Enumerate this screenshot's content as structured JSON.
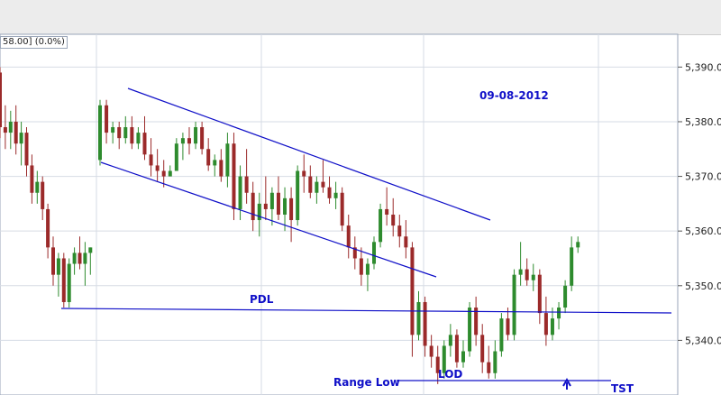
{
  "header": {
    "price_readout": "58.00] (0.0%)"
  },
  "annotations": {
    "date_label": "09-08-2012",
    "pdl_label": "PDL",
    "lod_label": "LOD",
    "range_low_label": "Range Low",
    "tst_label": "TST"
  },
  "colors": {
    "up": "#2e8b2e",
    "down": "#9b2a2a",
    "annotation": "#1010c8",
    "grid": "#d6dbe4"
  },
  "chart_data": {
    "type": "candlestick",
    "title": "",
    "y_ticks": [
      "5,340.00",
      "5,350.00",
      "5,360.00",
      "5,370.00",
      "5,380.00",
      "5,390.00"
    ],
    "ylim": [
      5330,
      5396
    ],
    "grid": true,
    "candles": [
      [
        5389.0,
        5390.0,
        5377.0,
        5379.0
      ],
      [
        5379.0,
        5383.0,
        5375.0,
        5378.0
      ],
      [
        5378.0,
        5382.0,
        5375.0,
        5380.0
      ],
      [
        5380.0,
        5383.0,
        5374.0,
        5376.0
      ],
      [
        5376.0,
        5380.0,
        5372.0,
        5378.0
      ],
      [
        5378.0,
        5379.0,
        5370.0,
        5372.0
      ],
      [
        5372.0,
        5374.0,
        5365.0,
        5367.0
      ],
      [
        5367.0,
        5371.0,
        5365.0,
        5369.0
      ],
      [
        5369.0,
        5370.0,
        5362.0,
        5364.0
      ],
      [
        5364.0,
        5365.0,
        5355.0,
        5357.0
      ],
      [
        5357.0,
        5359.0,
        5350.0,
        5352.0
      ],
      [
        5352.0,
        5356.0,
        5348.0,
        5355.0
      ],
      [
        5355.0,
        5356.0,
        5346.0,
        5347.0
      ],
      [
        5347.0,
        5355.0,
        5346.0,
        5354.0
      ],
      [
        5354.0,
        5357.0,
        5352.0,
        5356.0
      ],
      [
        5356.0,
        5359.0,
        5353.0,
        5354.0
      ],
      [
        5354.0,
        5358.0,
        5350.0,
        5356.0
      ],
      [
        5356.0,
        5357.0,
        5352.0,
        5357.0
      ],
      [
        5373.0,
        5384.0,
        5372.0,
        5383.0
      ],
      [
        5383.0,
        5384.0,
        5376.0,
        5378.0
      ],
      [
        5378.0,
        5380.0,
        5376.0,
        5379.0
      ],
      [
        5379.0,
        5380.0,
        5375.0,
        5377.0
      ],
      [
        5377.0,
        5381.0,
        5376.0,
        5379.0
      ],
      [
        5379.0,
        5381.0,
        5375.0,
        5376.0
      ],
      [
        5376.0,
        5379.0,
        5375.0,
        5378.0
      ],
      [
        5378.0,
        5381.0,
        5373.0,
        5374.0
      ],
      [
        5374.0,
        5377.0,
        5370.0,
        5372.0
      ],
      [
        5372.0,
        5375.0,
        5369.0,
        5371.0
      ],
      [
        5371.0,
        5373.0,
        5368.0,
        5370.0
      ],
      [
        5370.0,
        5372.0,
        5370.0,
        5371.0
      ],
      [
        5371.0,
        5377.0,
        5371.0,
        5376.0
      ],
      [
        5376.0,
        5378.0,
        5373.0,
        5377.0
      ],
      [
        5377.0,
        5379.0,
        5374.0,
        5376.0
      ],
      [
        5376.0,
        5380.0,
        5375.0,
        5379.0
      ],
      [
        5379.0,
        5380.0,
        5374.0,
        5375.0
      ],
      [
        5375.0,
        5377.0,
        5371.0,
        5372.0
      ],
      [
        5372.0,
        5374.0,
        5370.0,
        5373.0
      ],
      [
        5373.0,
        5375.0,
        5369.0,
        5370.0
      ],
      [
        5370.0,
        5378.0,
        5368.0,
        5376.0
      ],
      [
        5376.0,
        5378.0,
        5362.0,
        5364.0
      ],
      [
        5364.0,
        5372.0,
        5362.0,
        5370.0
      ],
      [
        5370.0,
        5375.0,
        5365.0,
        5367.0
      ],
      [
        5367.0,
        5369.0,
        5360.0,
        5362.0
      ],
      [
        5362.0,
        5367.0,
        5359.0,
        5365.0
      ],
      [
        5365.0,
        5370.0,
        5362.0,
        5364.0
      ],
      [
        5364.0,
        5368.0,
        5361.0,
        5367.0
      ],
      [
        5367.0,
        5370.0,
        5362.0,
        5363.0
      ],
      [
        5363.0,
        5368.0,
        5360.0,
        5366.0
      ],
      [
        5366.0,
        5368.0,
        5358.0,
        5362.0
      ],
      [
        5362.0,
        5372.0,
        5361.0,
        5371.0
      ],
      [
        5371.0,
        5374.0,
        5367.0,
        5370.0
      ],
      [
        5370.0,
        5372.0,
        5366.0,
        5367.0
      ],
      [
        5367.0,
        5370.0,
        5365.0,
        5369.0
      ],
      [
        5369.0,
        5373.0,
        5367.0,
        5368.0
      ],
      [
        5368.0,
        5370.0,
        5365.0,
        5366.0
      ],
      [
        5366.0,
        5369.0,
        5364.0,
        5367.0
      ],
      [
        5367.0,
        5368.0,
        5360.0,
        5361.0
      ],
      [
        5361.0,
        5363.0,
        5355.0,
        5357.0
      ],
      [
        5357.0,
        5359.0,
        5353.0,
        5355.0
      ],
      [
        5355.0,
        5357.0,
        5350.0,
        5352.0
      ],
      [
        5352.0,
        5355.0,
        5349.0,
        5354.0
      ],
      [
        5354.0,
        5359.0,
        5353.0,
        5358.0
      ],
      [
        5358.0,
        5365.0,
        5357.0,
        5364.0
      ],
      [
        5364.0,
        5368.0,
        5361.0,
        5363.0
      ],
      [
        5363.0,
        5366.0,
        5359.0,
        5361.0
      ],
      [
        5361.0,
        5363.0,
        5357.0,
        5359.0
      ],
      [
        5359.0,
        5362.0,
        5355.0,
        5357.0
      ],
      [
        5357.0,
        5358.0,
        5337.0,
        5341.0
      ],
      [
        5341.0,
        5349.0,
        5340.0,
        5347.0
      ],
      [
        5347.0,
        5348.0,
        5337.0,
        5339.0
      ],
      [
        5339.0,
        5341.0,
        5335.0,
        5337.0
      ],
      [
        5337.0,
        5339.0,
        5332.0,
        5334.0
      ],
      [
        5334.0,
        5340.0,
        5333.0,
        5339.0
      ],
      [
        5339.0,
        5343.0,
        5337.0,
        5341.0
      ],
      [
        5341.0,
        5342.0,
        5335.0,
        5336.0
      ],
      [
        5336.0,
        5340.0,
        5335.0,
        5338.0
      ],
      [
        5338.0,
        5347.0,
        5337.0,
        5346.0
      ],
      [
        5346.0,
        5348.0,
        5339.0,
        5341.0
      ],
      [
        5341.0,
        5343.0,
        5334.0,
        5336.0
      ],
      [
        5336.0,
        5339.0,
        5333.0,
        5334.0
      ],
      [
        5334.0,
        5340.0,
        5333.0,
        5338.0
      ],
      [
        5338.0,
        5345.0,
        5337.0,
        5344.0
      ],
      [
        5344.0,
        5346.0,
        5340.0,
        5341.0
      ],
      [
        5341.0,
        5353.0,
        5340.0,
        5352.0
      ],
      [
        5352.0,
        5358.0,
        5350.0,
        5353.0
      ],
      [
        5353.0,
        5355.0,
        5350.0,
        5351.0
      ],
      [
        5351.0,
        5354.0,
        5349.0,
        5352.0
      ],
      [
        5352.0,
        5353.0,
        5343.0,
        5345.0
      ],
      [
        5345.0,
        5348.0,
        5339.0,
        5341.0
      ],
      [
        5341.0,
        5346.0,
        5340.0,
        5344.0
      ],
      [
        5344.0,
        5347.0,
        5342.0,
        5346.0
      ],
      [
        5346.0,
        5351.0,
        5345.0,
        5350.0
      ],
      [
        5350.0,
        5359.0,
        5349.0,
        5357.0
      ],
      [
        5357.0,
        5359.0,
        5356.0,
        5358.0
      ]
    ]
  }
}
